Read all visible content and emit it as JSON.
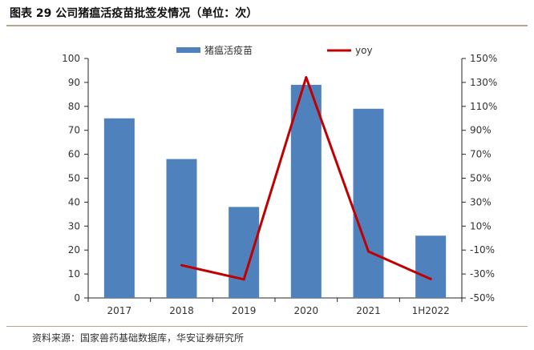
{
  "title": "图表 29 公司猪瘟活疫苗批签发情况（单位：次）",
  "source": "资料来源：国家兽药基础数据库，华安证券研究所",
  "chart_data": {
    "type": "bar",
    "categories": [
      "2017",
      "2018",
      "2019",
      "2020",
      "2021",
      "1H2022"
    ],
    "series": [
      {
        "name": "猪瘟活疫苗",
        "kind": "bar",
        "axis": "left",
        "color": "#4f81bd",
        "values": [
          75,
          58,
          38,
          89,
          79,
          26
        ]
      },
      {
        "name": "yoy",
        "kind": "line",
        "axis": "right",
        "color": "#c00000",
        "values": [
          null,
          -22.7,
          -34.5,
          134.2,
          -11.2,
          -34.2
        ]
      }
    ],
    "y_left": {
      "min": 0,
      "max": 100,
      "step": 10,
      "ticks": [
        "0",
        "10",
        "20",
        "30",
        "40",
        "50",
        "60",
        "70",
        "80",
        "90",
        "100"
      ]
    },
    "y_right": {
      "min": -50,
      "max": 150,
      "step": 20,
      "ticks": [
        "-50%",
        "-30%",
        "-10%",
        "10%",
        "30%",
        "50%",
        "70%",
        "90%",
        "110%",
        "130%",
        "150%"
      ]
    },
    "grid": false,
    "legend": "top-center"
  }
}
